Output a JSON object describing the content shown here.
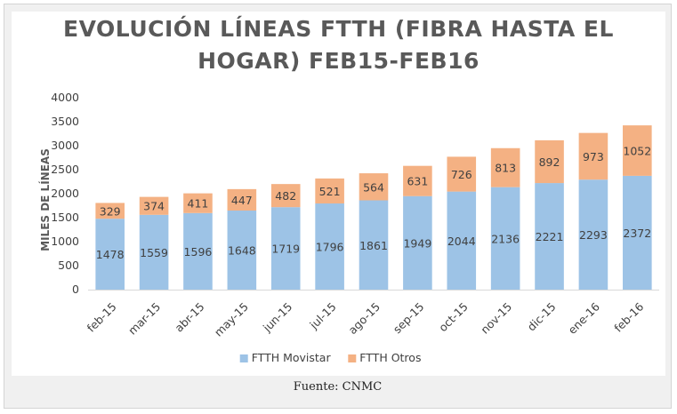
{
  "chart_data": {
    "type": "bar",
    "stacked": true,
    "title": "EVOLUCIÓN LÍNEAS FTTH (FIBRA HASTA EL HOGAR) FEB15-FEB16",
    "title_lines": [
      "EVOLUCIÓN LÍNEAS FTTH (FIBRA HASTA EL",
      "HOGAR) FEB15-FEB16"
    ],
    "ylabel": "MILES DE LÍNEAS",
    "xlabel": "",
    "ylim": [
      0,
      4000
    ],
    "yticks": [
      0,
      500,
      1000,
      1500,
      2000,
      2500,
      3000,
      3500,
      4000
    ],
    "grid": false,
    "legend_position": "bottom",
    "categories": [
      "feb-15",
      "mar-15",
      "abr-15",
      "may-15",
      "jun-15",
      "jul-15",
      "ago-15",
      "sep-15",
      "oct-15",
      "nov-15",
      "dic-15",
      "ene-16",
      "feb-16"
    ],
    "series": [
      {
        "name": "FTTH Movistar",
        "color": "#9dc3e6",
        "values": [
          1478,
          1559,
          1596,
          1648,
          1719,
          1796,
          1861,
          1949,
          2044,
          2136,
          2221,
          2293,
          2372
        ]
      },
      {
        "name": "FTTH Otros",
        "color": "#f4b183",
        "values": [
          329,
          374,
          411,
          447,
          482,
          521,
          564,
          631,
          726,
          813,
          892,
          973,
          1052
        ]
      }
    ]
  },
  "caption": "Fuente: CNMC"
}
